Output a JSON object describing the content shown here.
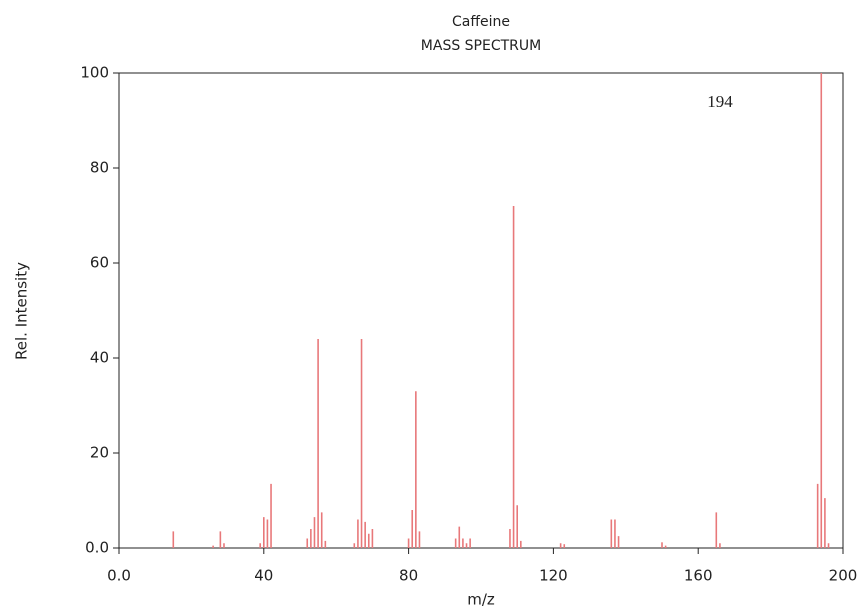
{
  "chart_data": {
    "type": "stem",
    "title": "Caffeine",
    "subtitle": "MASS SPECTRUM",
    "xlabel": "m/z",
    "ylabel": "Rel. Intensity",
    "annotation": "194",
    "color": "#e8787a",
    "x": [
      15,
      26,
      28,
      29,
      39,
      40,
      41,
      42,
      52,
      53,
      54,
      55,
      56,
      57,
      65,
      66,
      67,
      68,
      69,
      70,
      80,
      81,
      82,
      83,
      93,
      94,
      95,
      96,
      97,
      108,
      109,
      110,
      111,
      122,
      123,
      136,
      137,
      138,
      150,
      151,
      165,
      166,
      193,
      194,
      195,
      196
    ],
    "values": [
      3.5,
      0.5,
      3.5,
      1,
      1,
      6.5,
      6,
      13.5,
      2,
      4,
      6.5,
      44,
      7.5,
      1.5,
      1,
      6,
      44,
      5.5,
      3,
      4,
      2,
      8,
      33,
      3.5,
      2,
      4.5,
      2,
      1,
      2,
      4,
      72,
      9,
      1.5,
      1,
      0.8,
      6,
      6,
      2.5,
      1.2,
      0.5,
      7.5,
      1,
      13.5,
      100,
      10.5,
      1
    ],
    "xlim": [
      0,
      200
    ],
    "ylim": [
      0,
      100
    ],
    "xticks": [
      {
        "value": 0,
        "label": "0.0"
      },
      40,
      80,
      120,
      160,
      200
    ],
    "yticks": [
      {
        "value": 0,
        "label": "0.0"
      },
      20,
      40,
      60,
      80,
      100
    ]
  }
}
